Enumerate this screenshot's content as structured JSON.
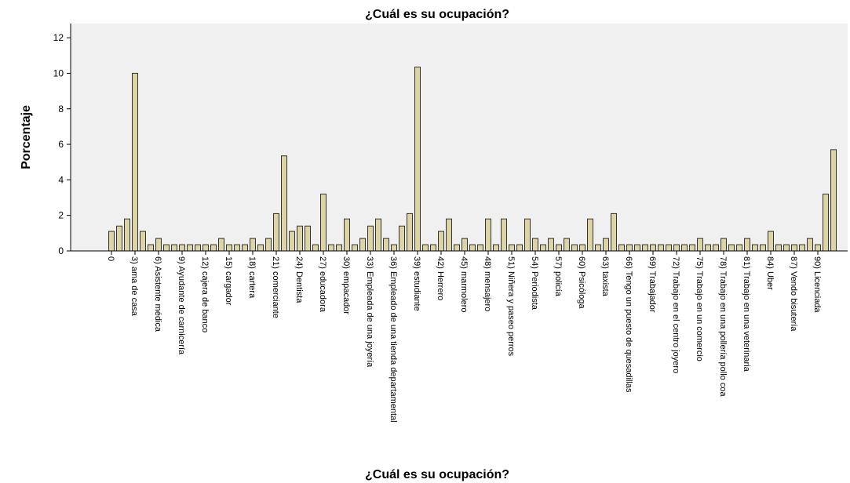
{
  "chart_data": {
    "type": "bar",
    "title": "¿Cuál es su ocupación?",
    "x_label": "¿Cuál es su ocupación?",
    "y_label": "Porcentaje",
    "categories": [
      "0",
      null,
      null,
      "3) ama de casa",
      null,
      null,
      "6) Asistente médica",
      null,
      null,
      "9) Ayudante de carnicería",
      null,
      null,
      "12) cajera de banco",
      null,
      null,
      "15) cargador",
      null,
      null,
      "18) cartera",
      null,
      null,
      "21) comerciante",
      null,
      null,
      "24) Dentista",
      null,
      null,
      "27) educadora",
      null,
      null,
      "30) empacador",
      null,
      null,
      "33) Empleada de una joyería",
      null,
      null,
      "36) Empleado de una tienda departamental",
      null,
      null,
      "39) estudiante",
      null,
      null,
      "42) Herrero",
      null,
      null,
      "45) marmolero",
      null,
      null,
      "48) mensajero",
      null,
      null,
      "51) Niñera y paseo perros",
      null,
      null,
      "54) Periodista",
      null,
      null,
      "57) policía",
      null,
      null,
      "60) Psicóloga",
      null,
      null,
      "63) taxista",
      null,
      null,
      "66) Tengo un puesto de quesadillas",
      null,
      null,
      "69) Trabajador",
      null,
      null,
      "72) Trabajo en el centro joyero",
      null,
      null,
      "75) Trabajo en un comercio",
      null,
      null,
      "78) Trabajo en una pollería pollo coa",
      null,
      null,
      "81) Trabajo en una veterinaria",
      null,
      null,
      "84) Uber",
      null,
      null,
      "87) Vendo bisutería",
      null,
      null,
      "90) Licenciada",
      null,
      null
    ],
    "values": [
      1.1,
      1.4,
      1.8,
      10.0,
      1.1,
      0.35,
      0.7,
      0.35,
      0.35,
      0.35,
      0.35,
      0.35,
      0.35,
      0.35,
      0.7,
      0.35,
      0.35,
      0.35,
      0.7,
      0.35,
      0.7,
      2.1,
      5.35,
      1.1,
      1.4,
      1.4,
      0.35,
      3.2,
      0.35,
      0.35,
      1.8,
      0.35,
      0.7,
      1.4,
      1.8,
      0.7,
      0.35,
      1.4,
      2.1,
      10.35,
      0.35,
      0.35,
      1.1,
      1.8,
      0.35,
      0.7,
      0.35,
      0.35,
      1.8,
      0.35,
      1.8,
      0.35,
      0.35,
      1.8,
      0.7,
      0.35,
      0.7,
      0.35,
      0.7,
      0.35,
      0.35,
      1.8,
      0.35,
      0.7,
      2.1,
      0.35,
      0.35,
      0.35,
      0.35,
      0.35,
      0.35,
      0.35,
      0.35,
      0.35,
      0.35,
      0.7,
      0.35,
      0.35,
      0.7,
      0.35,
      0.35,
      0.7,
      0.35,
      0.35,
      1.1,
      0.35,
      0.35,
      0.35,
      0.35,
      0.7,
      0.35,
      3.2,
      5.7
    ],
    "color": "#ddd4a4",
    "ylim": [
      0,
      12.8
    ],
    "yticks": [
      0,
      2,
      4,
      6,
      8,
      10,
      12
    ]
  }
}
